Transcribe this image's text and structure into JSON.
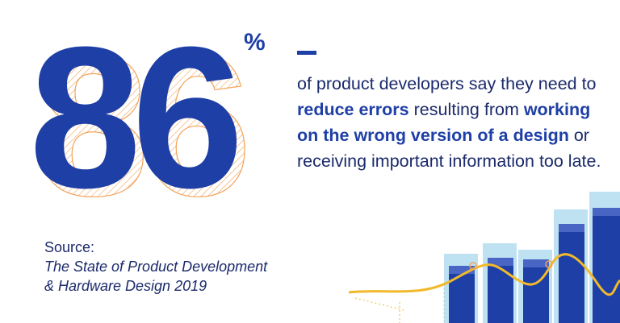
{
  "stat": {
    "number": "86",
    "unit": "%"
  },
  "blurb": {
    "part1": "of product developers say they need to ",
    "bold1": "reduce errors",
    "part2": " resulting from ",
    "bold2": "working on the wrong version of a design",
    "part3": " or receiving important information too late."
  },
  "source": {
    "label": "Source:",
    "title_line1": "The State of Product Development",
    "title_line2": "& Hardware Design 2019"
  },
  "colors": {
    "primary_blue": "#1e3fa6",
    "text_navy": "#1b2a6b",
    "accent_orange": "#f2a35a",
    "accent_yellow": "#f1b92b",
    "light_blue": "#a9d8ee"
  },
  "decor": {
    "graphic": "bar-chart-illustration"
  }
}
